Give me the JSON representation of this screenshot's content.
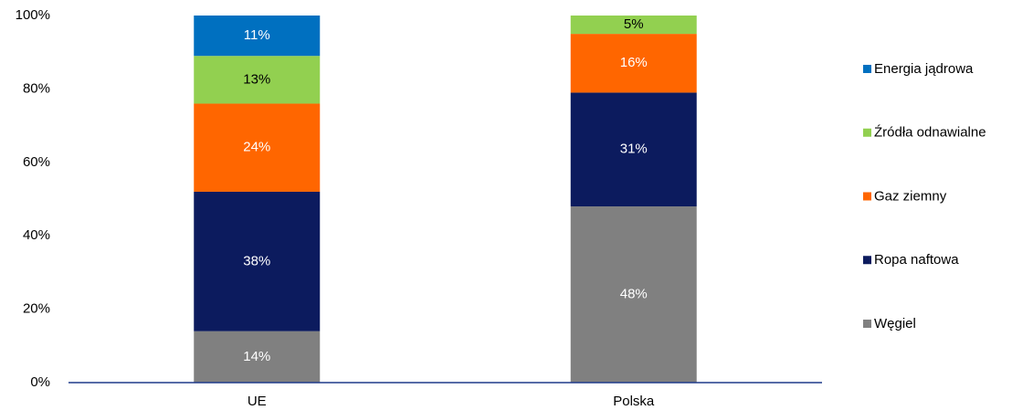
{
  "chart_data": {
    "type": "stacked_bar",
    "categories": [
      "UE",
      "Polska"
    ],
    "series": [
      {
        "name": "Węgiel",
        "color": "#808080",
        "values": [
          14,
          48
        ],
        "value_labels": [
          "14%",
          "48%"
        ]
      },
      {
        "name": "Ropa naftowa",
        "color": "#0c1b5e",
        "values": [
          38,
          31
        ],
        "value_labels": [
          "38%",
          "31%"
        ]
      },
      {
        "name": "Gaz ziemny",
        "color": "#ff6600",
        "values": [
          24,
          16
        ],
        "value_labels": [
          "24%",
          "16%"
        ]
      },
      {
        "name": "Źródła odnawialne",
        "color": "#92d050",
        "values": [
          13,
          5
        ],
        "value_labels": [
          "13%",
          "5%"
        ]
      },
      {
        "name": "Energia jądrowa",
        "color": "#0070c0",
        "values": [
          11,
          0
        ],
        "value_labels": [
          "11%",
          null
        ]
      }
    ],
    "ylim": [
      0,
      100
    ],
    "yticks": [
      {
        "value": 0,
        "label": "0%"
      },
      {
        "value": 20,
        "label": "20%"
      },
      {
        "value": 40,
        "label": "40%"
      },
      {
        "value": 60,
        "label": "60%"
      },
      {
        "value": 80,
        "label": "80%"
      },
      {
        "value": 100,
        "label": "100%"
      }
    ],
    "grid": false,
    "legend": "right"
  }
}
